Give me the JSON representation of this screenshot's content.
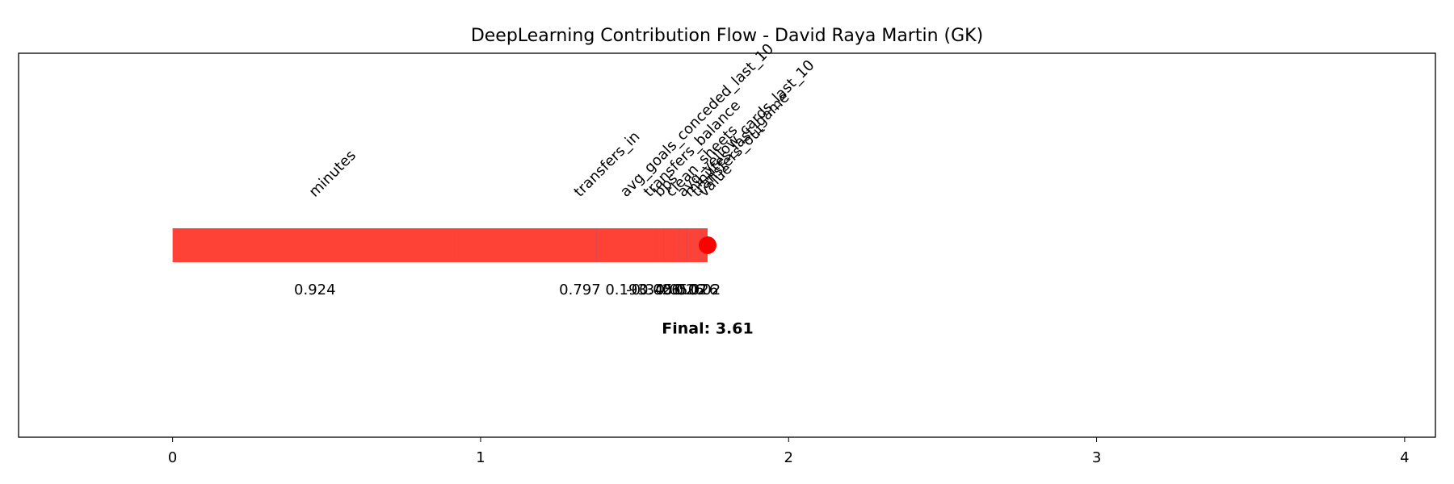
{
  "chart_data": {
    "type": "waterfall",
    "title": "DeepLearning Contribution Flow - David Raya Martin (GK)",
    "categories": [
      "minutes",
      "transfers_in",
      "transfers_balance",
      "avg_goals_conceded_last_10",
      "bps",
      "clean_sheets",
      "avg_yellow_cards_last_10",
      "minutes_last_game",
      "transfers_out",
      "value"
    ],
    "values": [
      0.924,
      0.797,
      -0.345,
      0.193,
      0.026,
      0.05,
      0.026,
      0.02,
      0.026,
      0.02
    ],
    "positive_color": "#ff4136",
    "negative_color": "#0074d9",
    "final_marker_color": "#ff0000",
    "final_text": "Final: 3.61",
    "xlim": [
      -0.5,
      4.1
    ],
    "xticks": [
      0,
      1,
      2,
      3,
      4
    ]
  }
}
